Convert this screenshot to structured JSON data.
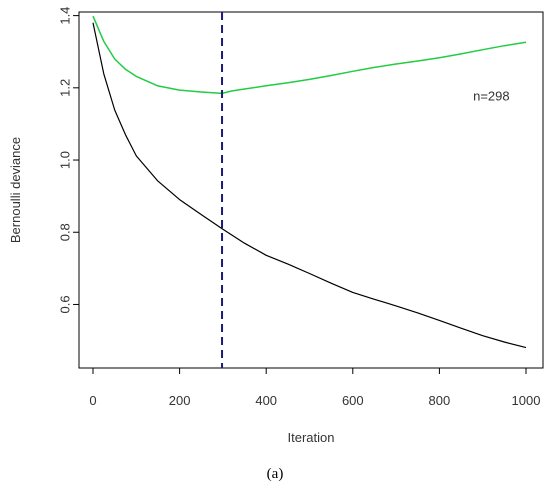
{
  "chart_data": {
    "type": "line",
    "xlabel": "Iteration",
    "ylabel": "Bernoulli deviance",
    "xlim": [
      0,
      1000
    ],
    "ylim": [
      0.46,
      1.41
    ],
    "xticks": [
      0,
      200,
      400,
      600,
      800,
      1000
    ],
    "yticks": [
      0.6,
      0.8,
      1.0,
      1.2,
      1.4
    ],
    "xtick_labels": [
      "0",
      "200",
      "400",
      "600",
      "800",
      "1000"
    ],
    "ytick_labels": [
      "0.6",
      "0.8",
      "1.0",
      "1.2",
      "1.4"
    ],
    "grid": false,
    "series": [
      {
        "color": "#000000",
        "x": [
          0,
          25,
          50,
          75,
          100,
          150,
          200,
          250,
          300,
          350,
          400,
          450,
          500,
          550,
          600,
          650,
          700,
          750,
          800,
          850,
          900,
          950,
          1000
        ],
        "y": [
          1.38,
          1.24,
          1.14,
          1.07,
          1.01,
          0.94,
          0.89,
          0.85,
          0.81,
          0.77,
          0.735,
          0.71,
          0.685,
          0.66,
          0.635,
          0.615,
          0.595,
          0.575,
          0.555,
          0.535,
          0.515,
          0.497,
          0.48
        ]
      },
      {
        "color": "#22cc44",
        "x": [
          0,
          25,
          50,
          75,
          100,
          150,
          200,
          250,
          298,
          320,
          350,
          400,
          450,
          500,
          550,
          600,
          650,
          700,
          750,
          800,
          850,
          900,
          950,
          1000
        ],
        "y": [
          1.4,
          1.33,
          1.28,
          1.25,
          1.23,
          1.205,
          1.195,
          1.19,
          1.185,
          1.19,
          1.195,
          1.205,
          1.215,
          1.225,
          1.235,
          1.245,
          1.255,
          1.265,
          1.275,
          1.285,
          1.295,
          1.305,
          1.315,
          1.325
        ]
      }
    ],
    "vline": {
      "x": 298,
      "color": "#1a1a7a",
      "style": "dashed"
    },
    "annotation": {
      "text": "n=298",
      "x": 920,
      "y": 1.165
    }
  },
  "caption": "(a)"
}
